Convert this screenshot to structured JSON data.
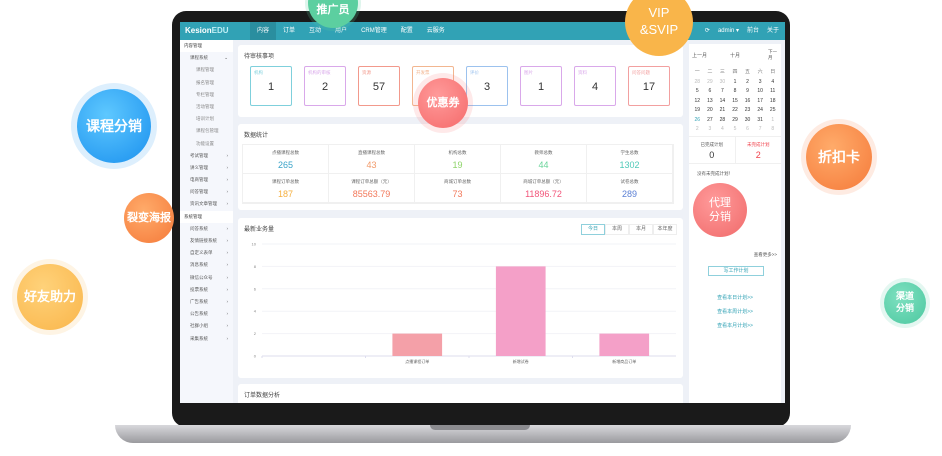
{
  "app": {
    "logo_a": "Kesion",
    "logo_b": "EDU"
  },
  "nav": [
    {
      "label": "内容"
    },
    {
      "label": "订单"
    },
    {
      "label": "互动"
    },
    {
      "label": "用户"
    },
    {
      "label": "CRM管理"
    },
    {
      "label": "配置"
    },
    {
      "label": "云服务"
    }
  ],
  "top_right": {
    "user": "admin ▾",
    "front": "前台",
    "about": "关于"
  },
  "sidebar": [
    {
      "label": "内容管理",
      "type": "head"
    },
    {
      "label": "课程系统",
      "type": "group",
      "arrow": "⌄"
    },
    {
      "label": "课程管理",
      "type": "sub"
    },
    {
      "label": "报名管理",
      "type": "sub"
    },
    {
      "label": "专栏管理",
      "type": "sub"
    },
    {
      "label": "活动管理",
      "type": "sub"
    },
    {
      "label": "培训计划",
      "type": "sub"
    },
    {
      "label": "课程包管理",
      "type": "sub"
    },
    {
      "label": "功能设置",
      "type": "sub"
    },
    {
      "label": "考试管理",
      "type": "group",
      "arrow": "›"
    },
    {
      "label": "讲义管理",
      "type": "group",
      "arrow": "›"
    },
    {
      "label": "电商管理",
      "type": "group",
      "arrow": "›"
    },
    {
      "label": "问答管理",
      "type": "group",
      "arrow": "›"
    },
    {
      "label": "资讯文章管理",
      "type": "group",
      "arrow": "›"
    },
    {
      "label": "系统管理",
      "type": "head"
    },
    {
      "label": "问答系统",
      "type": "group",
      "arrow": "›"
    },
    {
      "label": "友情链接系统",
      "type": "group",
      "arrow": "›"
    },
    {
      "label": "自定义表单",
      "type": "group",
      "arrow": "›"
    },
    {
      "label": "消息系统",
      "type": "group",
      "arrow": "›"
    },
    {
      "label": "微信公众号",
      "type": "group",
      "arrow": "›"
    },
    {
      "label": "投票系统",
      "type": "group",
      "arrow": "›"
    },
    {
      "label": "广告系统",
      "type": "group",
      "arrow": "›"
    },
    {
      "label": "公告系统",
      "type": "group",
      "arrow": "›"
    },
    {
      "label": "社群小组",
      "type": "group",
      "arrow": "›"
    },
    {
      "label": "采集系统",
      "type": "group",
      "arrow": "›"
    }
  ],
  "pending": {
    "title": "待审核事项",
    "tiles": [
      {
        "label": "机构",
        "value": "1",
        "color": "#7fd0dc"
      },
      {
        "label": "机构的审核",
        "value": "2",
        "color": "#d9a8ea"
      },
      {
        "label": "资源",
        "value": "57",
        "color": "#f2998c"
      },
      {
        "label": "开发票",
        "value": "",
        "color": "#f2b690"
      },
      {
        "label": "评价",
        "value": "3",
        "color": "#9cc2ee"
      },
      {
        "label": "图片",
        "value": "1",
        "color": "#d9a8ea"
      },
      {
        "label": "资料",
        "value": "4",
        "color": "#d9a8ea"
      },
      {
        "label": "问答问题",
        "value": "17",
        "color": "#f2a0a0"
      }
    ]
  },
  "stats": {
    "title": "数据统计",
    "items": [
      {
        "label": "点播课程总数",
        "value": "265",
        "color": "#3aa3c8"
      },
      {
        "label": "直播课程总数",
        "value": "43",
        "color": "#f29a6a"
      },
      {
        "label": "机构总数",
        "value": "19",
        "color": "#8fd46a"
      },
      {
        "label": "教师总数",
        "value": "44",
        "color": "#6ad49a"
      },
      {
        "label": "学生总数",
        "value": "1302",
        "color": "#4fc9b8"
      },
      {
        "label": "课程订单总数",
        "value": "187",
        "color": "#f5b040"
      },
      {
        "label": "课程订单总额（元）",
        "value": "85563.79",
        "color": "#f2785a"
      },
      {
        "label": "商城订单总数",
        "value": "73",
        "color": "#f2785a"
      },
      {
        "label": "商城订单总额（元）",
        "value": "11896.72",
        "color": "#f2557a"
      },
      {
        "label": "试卷总数",
        "value": "289",
        "color": "#5a7fd4"
      }
    ]
  },
  "business": {
    "title": "最新业务量",
    "tabs": [
      "今日",
      "本周",
      "本月",
      "本年度"
    ],
    "active_tab": 0
  },
  "chart_data": {
    "type": "bar",
    "categories": [
      "",
      "点播课程订单",
      "新增试卷",
      "新增商品订单"
    ],
    "values": [
      0,
      2,
      8,
      2
    ],
    "colors": [
      "#f4b8a0",
      "#f4a0a8",
      "#f4a0c8",
      "#f4a0c8"
    ],
    "ylim": [
      0,
      10
    ],
    "yticks": [
      "0",
      "2",
      "4",
      "6",
      "8",
      "10"
    ],
    "grid": true
  },
  "orders": {
    "title": "订单数据分析"
  },
  "calendar": {
    "prev": "上一月",
    "month": "十月",
    "next": "下一月",
    "weekdays": [
      "一",
      "二",
      "三",
      "四",
      "五",
      "六",
      "日"
    ],
    "days": [
      [
        "28",
        "g"
      ],
      [
        "29",
        "g"
      ],
      [
        "30",
        "g"
      ],
      [
        "1",
        ""
      ],
      [
        "2",
        ""
      ],
      [
        "3",
        ""
      ],
      [
        "4",
        ""
      ],
      [
        "5",
        ""
      ],
      [
        "6",
        ""
      ],
      [
        "7",
        ""
      ],
      [
        "8",
        ""
      ],
      [
        "9",
        ""
      ],
      [
        "10",
        ""
      ],
      [
        "11",
        ""
      ],
      [
        "12",
        ""
      ],
      [
        "13",
        ""
      ],
      [
        "14",
        ""
      ],
      [
        "15",
        ""
      ],
      [
        "16",
        ""
      ],
      [
        "17",
        ""
      ],
      [
        "18",
        ""
      ],
      [
        "19",
        ""
      ],
      [
        "20",
        ""
      ],
      [
        "21",
        ""
      ],
      [
        "22",
        ""
      ],
      [
        "23",
        ""
      ],
      [
        "24",
        ""
      ],
      [
        "25",
        ""
      ],
      [
        "26",
        "t"
      ],
      [
        "27",
        ""
      ],
      [
        "28",
        ""
      ],
      [
        "29",
        ""
      ],
      [
        "30",
        ""
      ],
      [
        "31",
        ""
      ],
      [
        "1",
        "g"
      ],
      [
        "2",
        "g"
      ],
      [
        "3",
        "g"
      ],
      [
        "4",
        "g"
      ],
      [
        "5",
        "g"
      ],
      [
        "6",
        "g"
      ],
      [
        "7",
        "g"
      ],
      [
        "8",
        "g"
      ]
    ]
  },
  "plans": {
    "done_label": "已完成计划",
    "done": "0",
    "todo_label": "未完成计划",
    "todo": "2",
    "empty": "没有未完成计划！",
    "more": "查看更多>>",
    "write": "写工作计划",
    "day": "查看本日计划>>",
    "week": "查看本周计划>>",
    "month": "查看本月计划>>"
  },
  "bubbles": {
    "promoter": "推广员",
    "vip": "VIP\n&SVIP",
    "course_dist": "课程分销",
    "discount": "折扣卡",
    "poster": "裂变海报",
    "coupon": "优惠券",
    "agent": "代理\n分销",
    "friend": "好友助力",
    "channel": "渠道\n分销"
  }
}
